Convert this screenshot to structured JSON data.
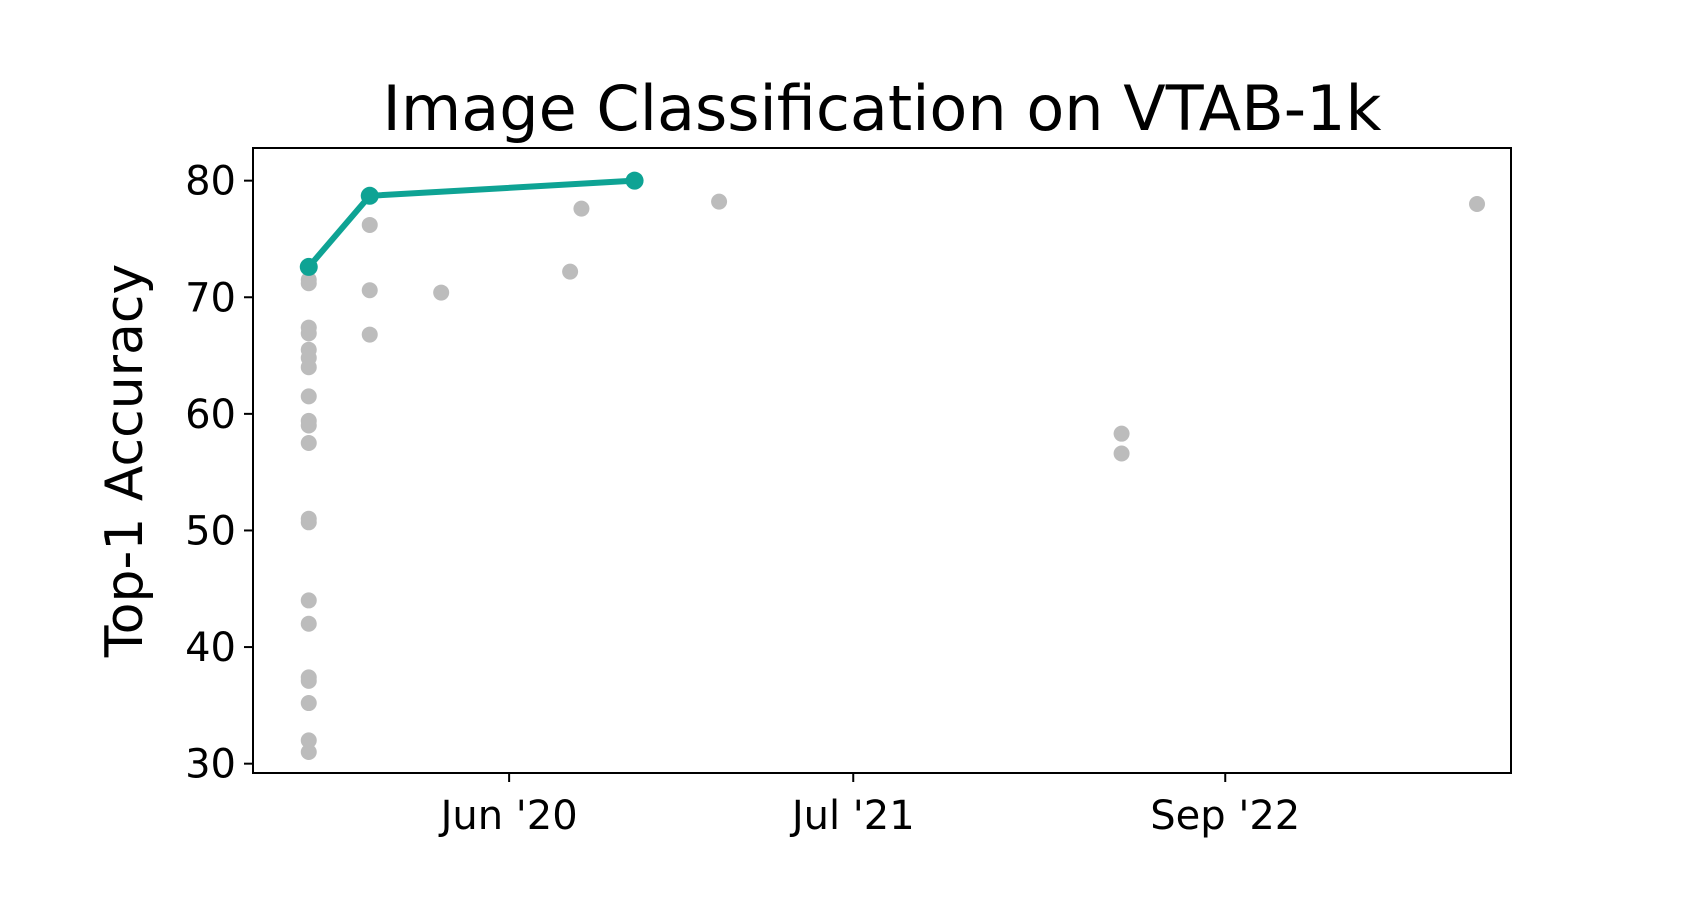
{
  "colors": {
    "background": "#ffffff",
    "scatter": "#bcbcbc",
    "frontier": "#0ea394",
    "axis": "#000000"
  },
  "chart_data": {
    "type": "scatter",
    "title": "Image Classification on VTAB-1k",
    "xlabel": "",
    "ylabel": "Top-1 Accuracy",
    "xlim": [
      "2019-08-12",
      "2023-07-26"
    ],
    "ylim": [
      29.2,
      82.8
    ],
    "x_ticks": [
      {
        "date": "2020-06-01",
        "label": "Jun '20"
      },
      {
        "date": "2021-07-01",
        "label": "Jul '21"
      },
      {
        "date": "2022-09-01",
        "label": "Sep '22"
      }
    ],
    "y_ticks": [
      30,
      40,
      50,
      60,
      70,
      80
    ],
    "grid": false,
    "legend": "none",
    "series": [
      {
        "role": "all-results",
        "points": [
          {
            "x": "2019-10-15",
            "y": 71.2
          },
          {
            "x": "2019-10-15",
            "y": 71.5
          },
          {
            "x": "2019-10-15",
            "y": 67.4
          },
          {
            "x": "2019-10-15",
            "y": 66.9
          },
          {
            "x": "2019-10-15",
            "y": 65.5
          },
          {
            "x": "2019-10-15",
            "y": 64.8
          },
          {
            "x": "2019-10-15",
            "y": 64.0
          },
          {
            "x": "2019-10-15",
            "y": 61.5
          },
          {
            "x": "2019-10-15",
            "y": 59.4
          },
          {
            "x": "2019-10-15",
            "y": 59.0
          },
          {
            "x": "2019-10-15",
            "y": 57.5
          },
          {
            "x": "2019-10-15",
            "y": 51.0
          },
          {
            "x": "2019-10-15",
            "y": 50.7
          },
          {
            "x": "2019-10-15",
            "y": 44.0
          },
          {
            "x": "2019-10-15",
            "y": 42.0
          },
          {
            "x": "2019-10-15",
            "y": 37.4
          },
          {
            "x": "2019-10-15",
            "y": 37.1
          },
          {
            "x": "2019-10-15",
            "y": 35.2
          },
          {
            "x": "2019-10-15",
            "y": 32.0
          },
          {
            "x": "2019-10-15",
            "y": 31.0
          },
          {
            "x": "2019-12-24",
            "y": 76.2
          },
          {
            "x": "2019-12-24",
            "y": 70.6
          },
          {
            "x": "2019-12-24",
            "y": 66.8
          },
          {
            "x": "2020-03-15",
            "y": 70.4
          },
          {
            "x": "2020-08-10",
            "y": 72.2
          },
          {
            "x": "2020-08-23",
            "y": 77.6
          },
          {
            "x": "2021-01-28",
            "y": 78.2
          },
          {
            "x": "2022-05-05",
            "y": 58.3
          },
          {
            "x": "2022-05-05",
            "y": 56.6
          },
          {
            "x": "2023-06-17",
            "y": 78.0
          }
        ]
      },
      {
        "role": "state-of-the-art",
        "points": [
          {
            "x": "2019-10-15",
            "y": 72.6
          },
          {
            "x": "2019-12-24",
            "y": 78.7
          },
          {
            "x": "2020-10-23",
            "y": 80.0
          }
        ]
      }
    ]
  }
}
